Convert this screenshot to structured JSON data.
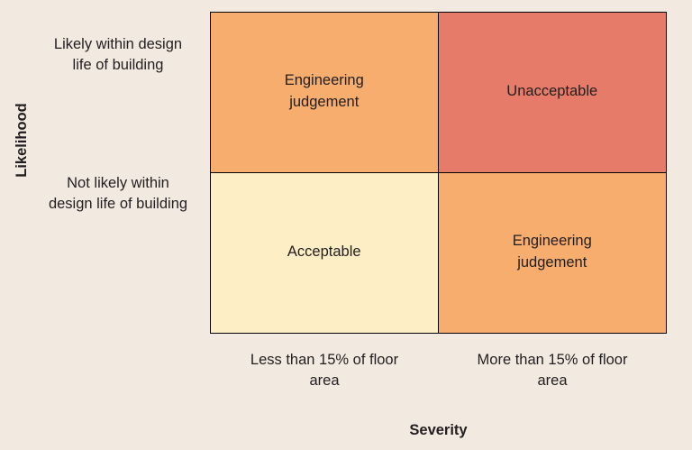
{
  "page": {
    "background": "#f2e9e1",
    "text_color": "#221e1f",
    "border_color": "#000000"
  },
  "matrix": {
    "type": "risk-matrix",
    "y_axis_label": "Likelihood",
    "x_axis_label": "Severity",
    "row_labels": [
      "Likely within design life of building",
      "Not likely within design life of building"
    ],
    "col_labels": [
      "Less than 15% of floor area",
      "More than 15% of floor area"
    ],
    "cells": [
      {
        "row": "Likely within design life of building",
        "col": "Less than 15% of floor area",
        "label": "Engineering judgement",
        "color": "#f6ad6d"
      },
      {
        "row": "Likely within design life of building",
        "col": "More than 15% of floor area",
        "label": "Unacceptable",
        "color": "#e77b69"
      },
      {
        "row": "Not likely within design life of building",
        "col": "Less than 15% of floor area",
        "label": "Acceptable",
        "color": "#fdeec6"
      },
      {
        "row": "Not likely within design life of building",
        "col": "More than 15% of floor area",
        "label": "Engineering judgement",
        "color": "#f6ad6d"
      }
    ]
  }
}
